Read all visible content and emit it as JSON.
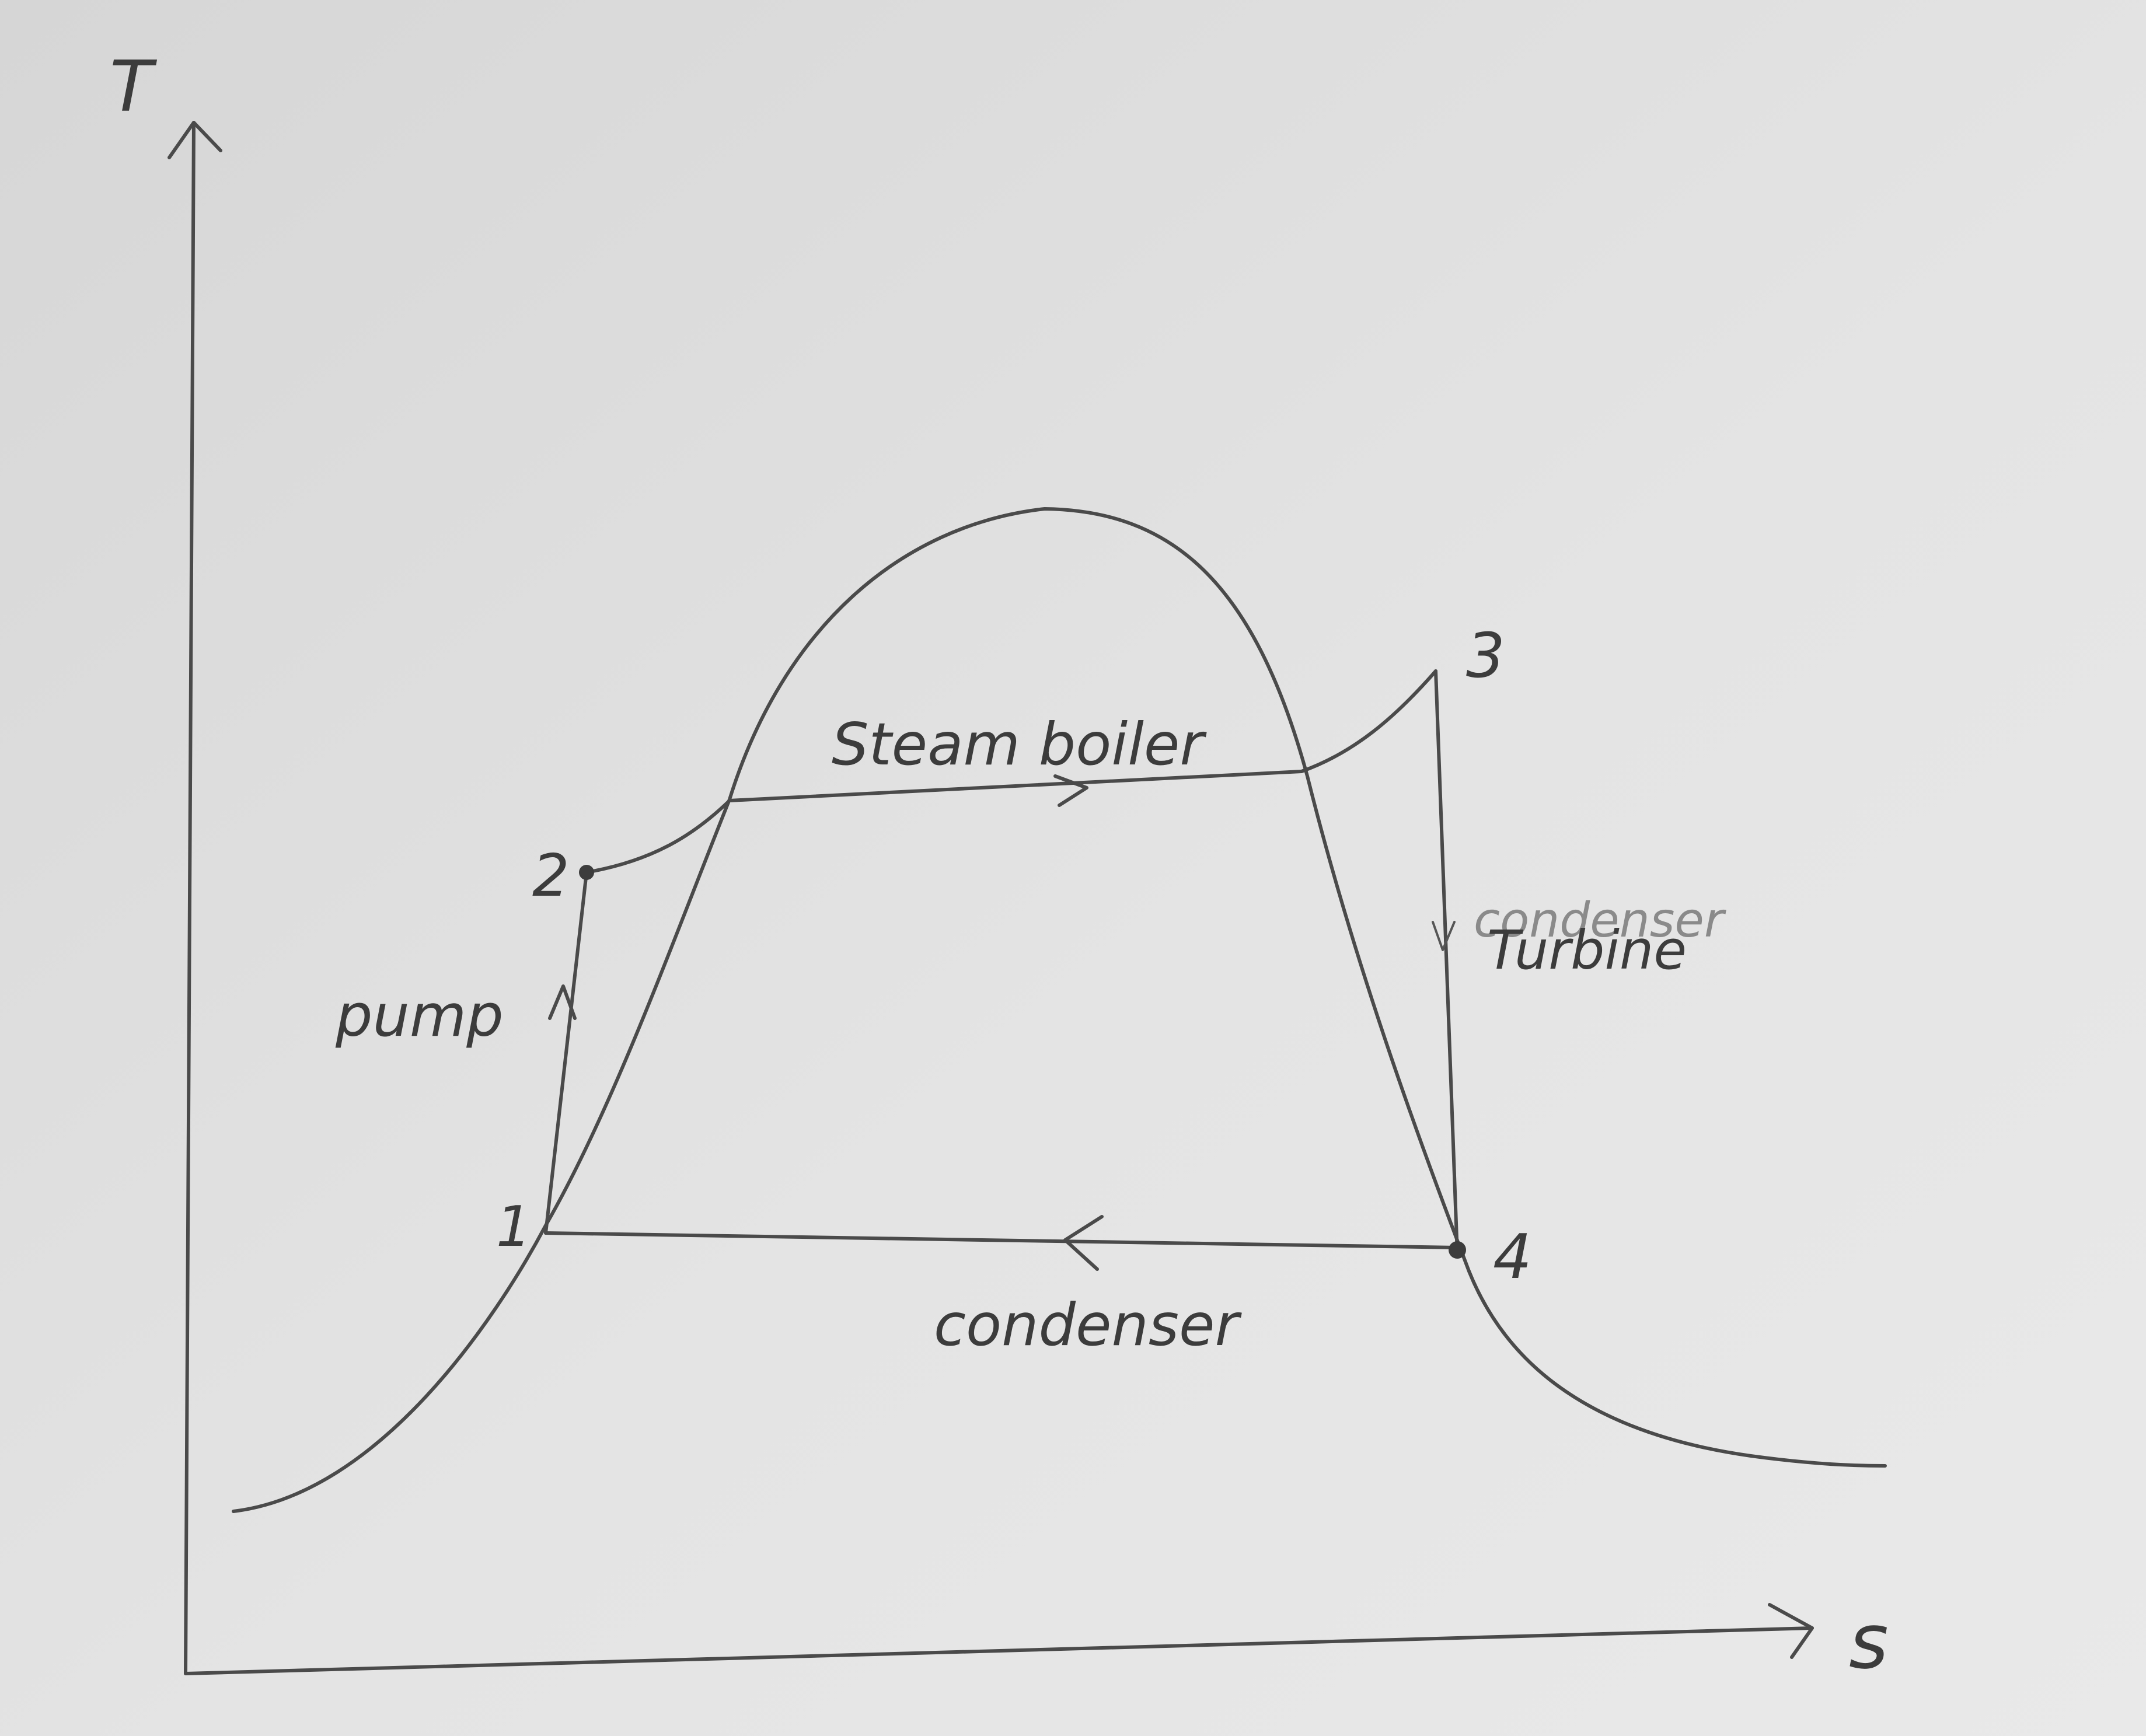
{
  "diagram": {
    "axes": {
      "y_label": "T",
      "x_label": "s"
    },
    "points": [
      {
        "id": "1",
        "label": "1"
      },
      {
        "id": "2",
        "label": "2"
      },
      {
        "id": "3",
        "label": "3"
      },
      {
        "id": "4",
        "label": "4"
      }
    ],
    "processes": {
      "pump": "pump",
      "boiler": "Steam boiler",
      "turbine": "Turbine",
      "turbine_overwritten": "condenser",
      "condenser": "condenser"
    },
    "colors": {
      "paper": "#e4e4e4",
      "pencil": "#4a4a4a"
    }
  }
}
